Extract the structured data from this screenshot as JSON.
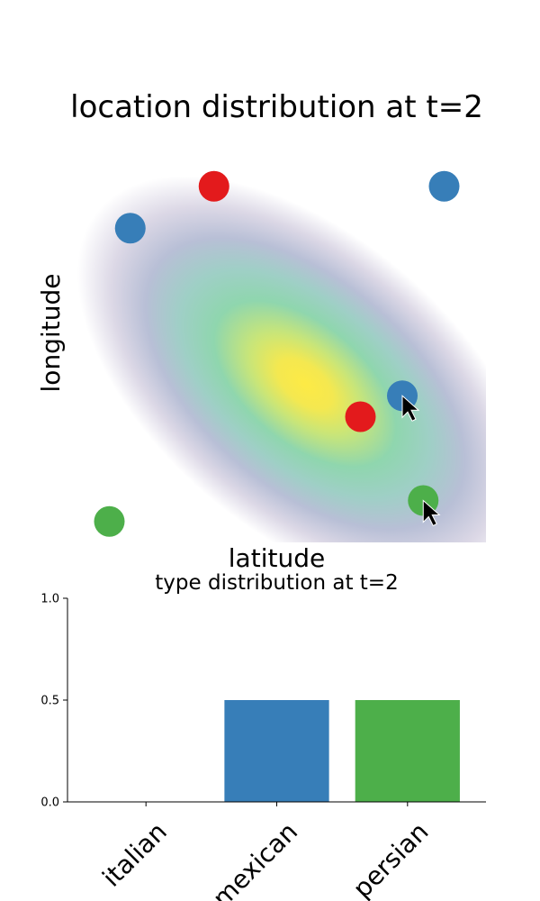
{
  "chart_data": [
    {
      "type": "scatter",
      "title": "location distribution at t=2",
      "xlabel": "latitude",
      "ylabel": "longitude",
      "xlim": [
        0,
        10
      ],
      "ylim": [
        0,
        10
      ],
      "ticks_visible": false,
      "density": {
        "description": "2D Gaussian heatmap (viridis-like)",
        "mean": [
          6.0,
          3.7
        ],
        "peak_color": "#fdea45"
      },
      "series": [
        {
          "color": "#e31a1c",
          "points": [
            [
              3.5,
              8.5
            ],
            [
              7.0,
              3.0
            ]
          ]
        },
        {
          "color": "#377eb8",
          "points": [
            [
              1.5,
              7.5
            ],
            [
              9.0,
              8.5
            ],
            [
              8.0,
              3.5
            ]
          ]
        },
        {
          "color": "#4daf4a",
          "points": [
            [
              1.0,
              0.5
            ],
            [
              8.5,
              1.0
            ]
          ]
        }
      ],
      "cursors": [
        [
          8.0,
          3.5
        ],
        [
          8.5,
          1.0
        ]
      ]
    },
    {
      "type": "bar",
      "title": "type distribution at t=2",
      "categories": [
        "italian",
        "mexican",
        "persian"
      ],
      "values": [
        0.0,
        0.5,
        0.5
      ],
      "colors": [
        "#e31a1c",
        "#377eb8",
        "#4daf4a"
      ],
      "ylim": [
        0,
        1.0
      ],
      "yticks": [
        "0.0",
        "0.5",
        "1.0"
      ],
      "ytick_values": [
        0,
        0.5,
        1.0
      ]
    }
  ]
}
